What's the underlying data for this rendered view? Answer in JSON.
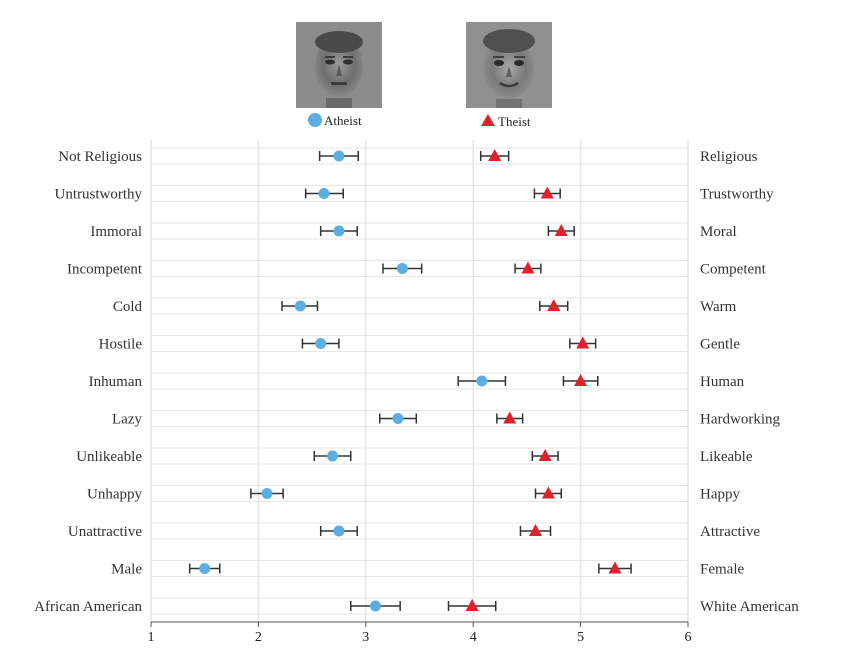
{
  "chart_data": {
    "type": "scatter",
    "xlim": [
      1,
      6
    ],
    "x_ticks": [
      "1",
      "2",
      "3",
      "4",
      "5",
      "6"
    ],
    "grid": true,
    "legend_position": "top",
    "series": [
      {
        "name": "Atheist",
        "marker": "circle",
        "color": "#5aaee0",
        "values": [
          2.75,
          2.61,
          2.75,
          3.34,
          2.39,
          2.58,
          4.08,
          3.3,
          2.69,
          2.08,
          2.75,
          1.5,
          3.09
        ],
        "ci_low": [
          2.57,
          2.44,
          2.58,
          3.16,
          2.22,
          2.41,
          3.86,
          3.13,
          2.52,
          1.93,
          2.58,
          1.36,
          2.86
        ],
        "ci_high": [
          2.93,
          2.79,
          2.92,
          3.52,
          2.55,
          2.75,
          4.3,
          3.47,
          2.86,
          2.23,
          2.92,
          1.64,
          3.32
        ]
      },
      {
        "name": "Theist",
        "marker": "triangle",
        "color": "#e0202a",
        "values": [
          4.2,
          4.69,
          4.82,
          4.51,
          4.75,
          5.02,
          5.0,
          4.34,
          4.67,
          4.7,
          4.58,
          5.32,
          3.99
        ],
        "ci_low": [
          4.07,
          4.57,
          4.7,
          4.39,
          4.62,
          4.9,
          4.84,
          4.22,
          4.55,
          4.58,
          4.44,
          5.17,
          3.77
        ],
        "ci_high": [
          4.33,
          4.81,
          4.94,
          4.63,
          4.88,
          5.14,
          5.16,
          4.46,
          4.79,
          4.82,
          4.72,
          5.47,
          4.21
        ]
      }
    ],
    "rows": [
      {
        "left": "Not Religious",
        "right": "Religious"
      },
      {
        "left": "Untrustworthy",
        "right": "Trustworthy"
      },
      {
        "left": "Immoral",
        "right": "Moral"
      },
      {
        "left": "Incompetent",
        "right": "Competent"
      },
      {
        "left": "Cold",
        "right": "Warm"
      },
      {
        "left": "Hostile",
        "right": "Gentle"
      },
      {
        "left": "Inhuman",
        "right": "Human"
      },
      {
        "left": "Lazy",
        "right": "Hardworking"
      },
      {
        "left": "Unlikeable",
        "right": "Likeable"
      },
      {
        "left": "Unhappy",
        "right": "Happy"
      },
      {
        "left": "Unattractive",
        "right": "Attractive"
      },
      {
        "left": "Male",
        "right": "Female"
      },
      {
        "left": "African American",
        "right": "White American"
      }
    ]
  },
  "colors": {
    "grid": "#e6e6e6",
    "axis": "#555555",
    "error_bar": "#333333"
  }
}
